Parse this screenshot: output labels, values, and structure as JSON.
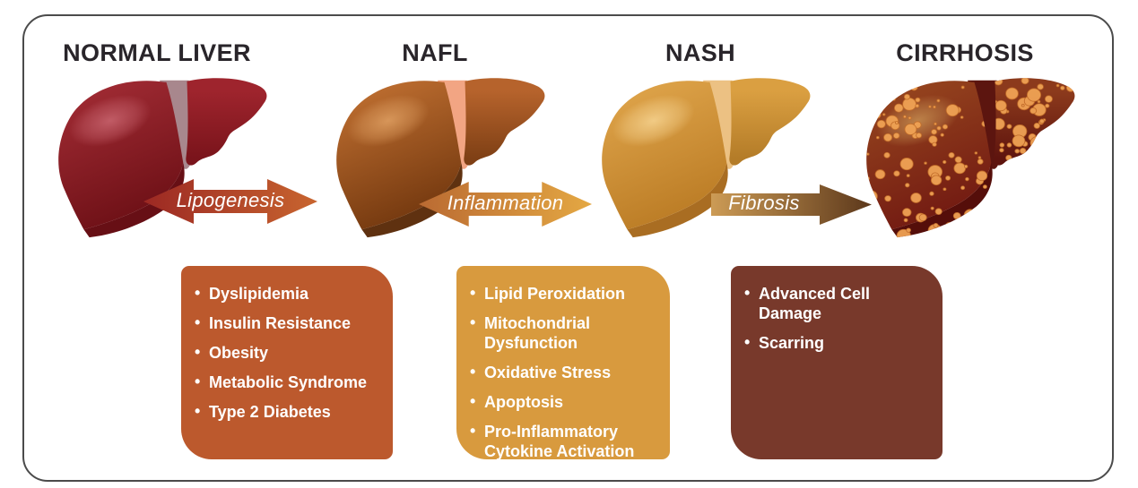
{
  "frame": {
    "border_color": "#4b4b4b",
    "background": "#ffffff"
  },
  "text_colors": {
    "title": "#29252a",
    "bullet": "#ffffff",
    "arrow_label": "#ffffff"
  },
  "stages": [
    {
      "label": "NORMAL LIVER",
      "liver": {
        "main_top": "#A62E37",
        "main_bottom": "#6F1117",
        "highlight": "#C6626C",
        "band": "#A8878D",
        "right_top": "#9E242D",
        "right_bottom": "#7A141B",
        "rim": "#670F15"
      }
    },
    {
      "label": "NAFL",
      "liver": {
        "main_top": "#C67434",
        "main_bottom": "#763A10",
        "highlight": "#DC9C5F",
        "band": "#F2A583",
        "right_top": "#B6632C",
        "right_bottom": "#7F4015",
        "rim": "#5F3110"
      }
    },
    {
      "label": "NASH",
      "liver": {
        "main_top": "#E2A84E",
        "main_bottom": "#BC7D26",
        "highlight": "#F4D08C",
        "band": "#ECC183",
        "right_top": "#DA9F41",
        "right_bottom": "#B47C28",
        "rim": "#A96D22"
      }
    },
    {
      "label": "CIRRHOSIS",
      "liver": {
        "main_top": "#9A4A20",
        "main_bottom": "#731B12",
        "highlight": "#C28A4E",
        "band": "#5C150F",
        "right_top": "#8C3A1C",
        "right_bottom": "#5E140E",
        "rim": "#550E0A",
        "nodule_fill": "#F0A355",
        "nodule_edge": "#C46E2A"
      }
    }
  ],
  "arrows": [
    {
      "label": "Lipogenesis",
      "direction": "bidirectional",
      "color_start": "#9C2823",
      "color_end": "#C8652F"
    },
    {
      "label": "Inflammation",
      "direction": "bidirectional",
      "color_start": "#BA6A32",
      "color_end": "#E4A843"
    },
    {
      "label": "Fibrosis",
      "direction": "right",
      "color_start": "#CC9B55",
      "color_end": "#5C381B"
    }
  ],
  "boxes": [
    {
      "color": "#BC592D",
      "items": [
        "Dyslipidemia",
        "Insulin Resistance",
        "Obesity",
        "Metabolic Syndrome",
        "Type 2 Diabetes"
      ]
    },
    {
      "color": "#D89A3E",
      "items": [
        "Lipid Peroxidation",
        "Mitochondrial\nDysfunction",
        "Oxidative Stress",
        "Apoptosis",
        "Pro-Inflammatory\nCytokine Activation"
      ]
    },
    {
      "color": "#78392B",
      "items": [
        "Advanced Cell\nDamage",
        "Scarring"
      ]
    }
  ]
}
